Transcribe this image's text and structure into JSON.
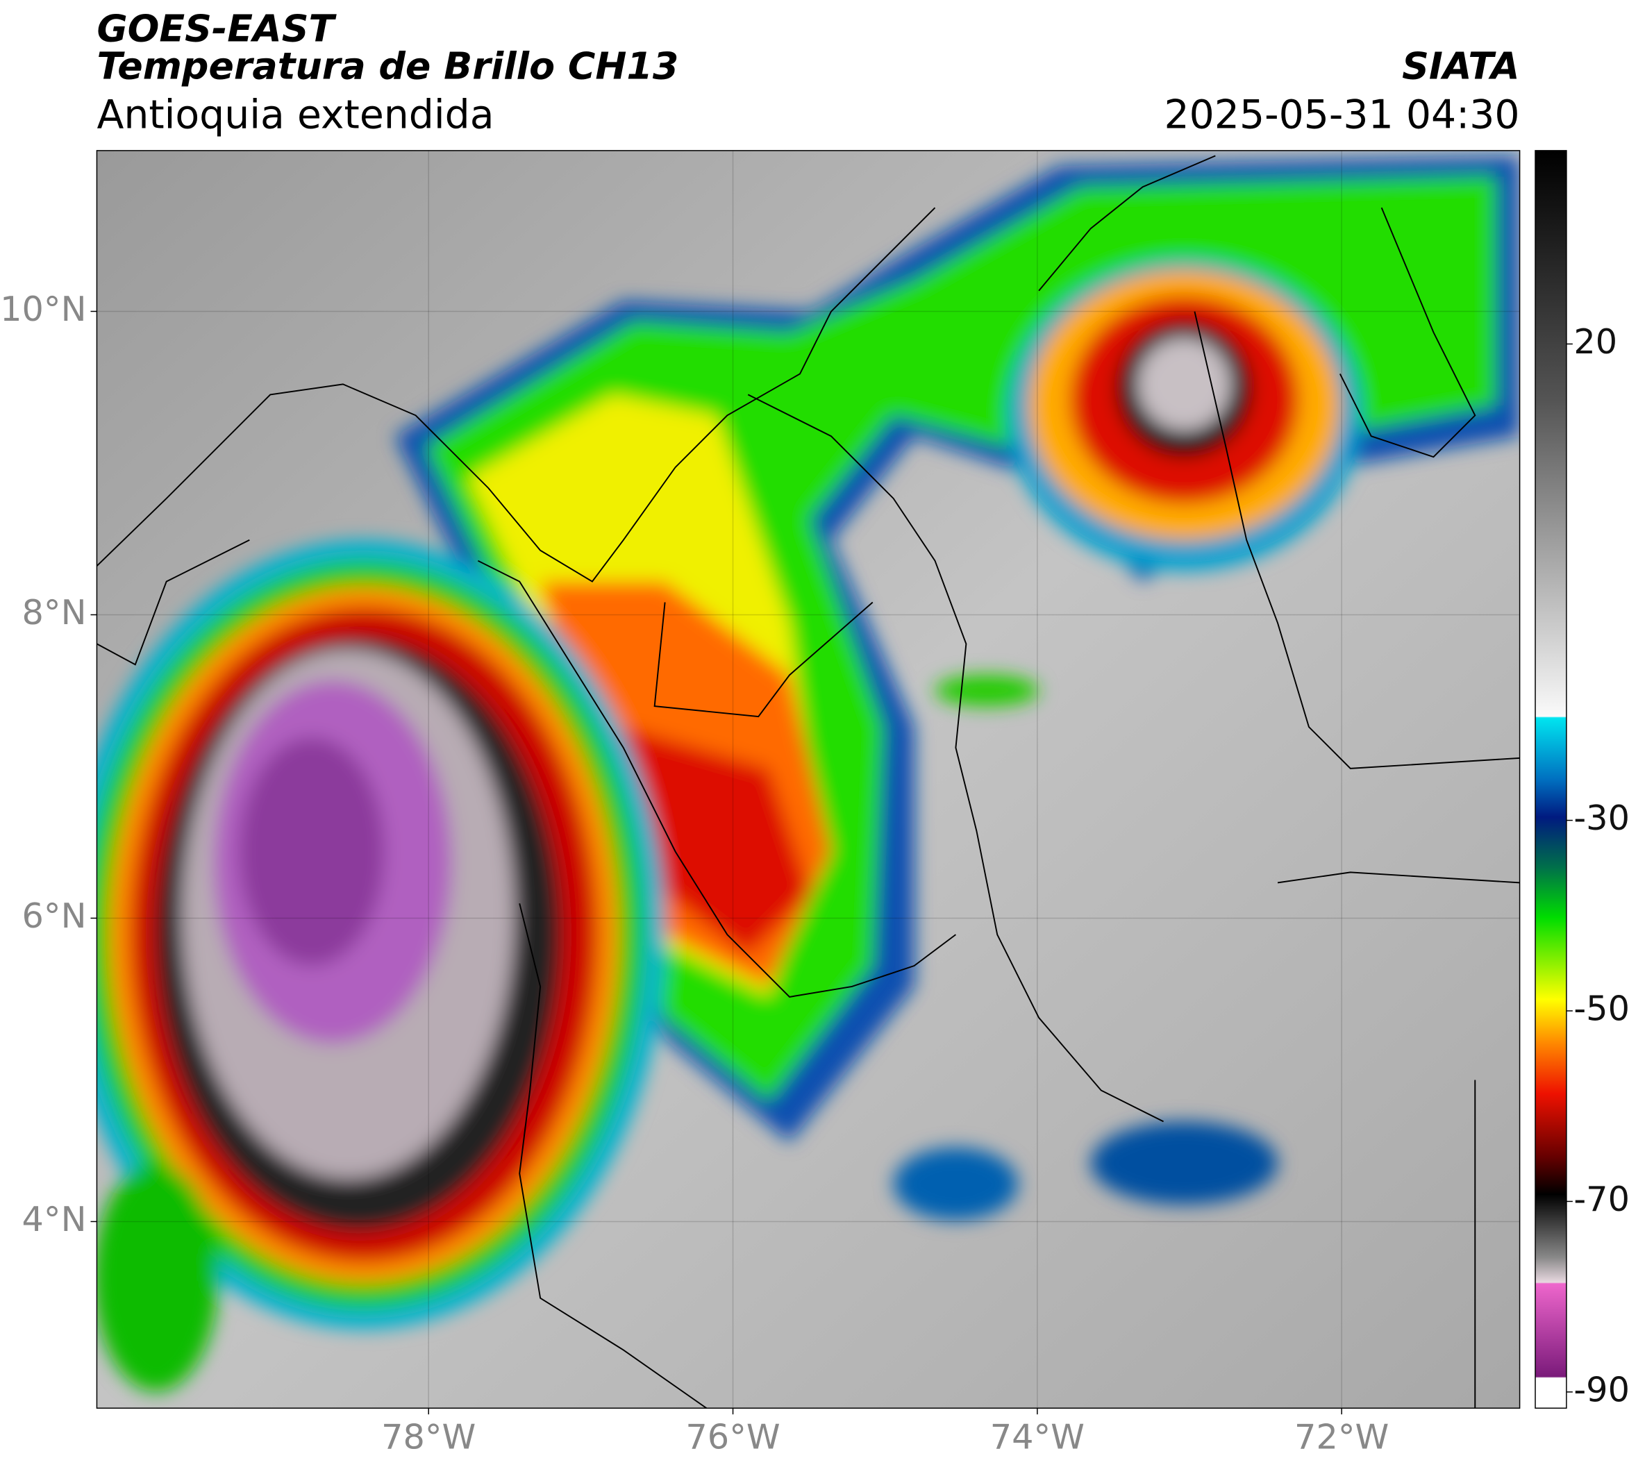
{
  "header": {
    "title": "GOES-EAST",
    "subtitle": "Temperatura de Brillo CH13",
    "region": "Antioquia extendida",
    "source": "SIATA",
    "timestamp": "2025-05-31 04:30"
  },
  "map": {
    "xlim": [
      -80.18,
      -70.83
    ],
    "ylim": [
      2.77,
      11.06
    ],
    "xticks": [
      {
        "value": -78,
        "label": "78°W"
      },
      {
        "value": -76,
        "label": "76°W"
      },
      {
        "value": -74,
        "label": "74°W"
      },
      {
        "value": -72,
        "label": "72°W"
      }
    ],
    "yticks": [
      {
        "value": 4,
        "label": "4°N"
      },
      {
        "value": 6,
        "label": "6°N"
      },
      {
        "value": 8,
        "label": "8°N"
      },
      {
        "value": 10,
        "label": "10°N"
      }
    ],
    "grid": true
  },
  "colorbar": {
    "lim": [
      -91.7,
      40.3
    ],
    "ticks": [
      20,
      -30,
      -50,
      -70,
      -90
    ]
  }
}
